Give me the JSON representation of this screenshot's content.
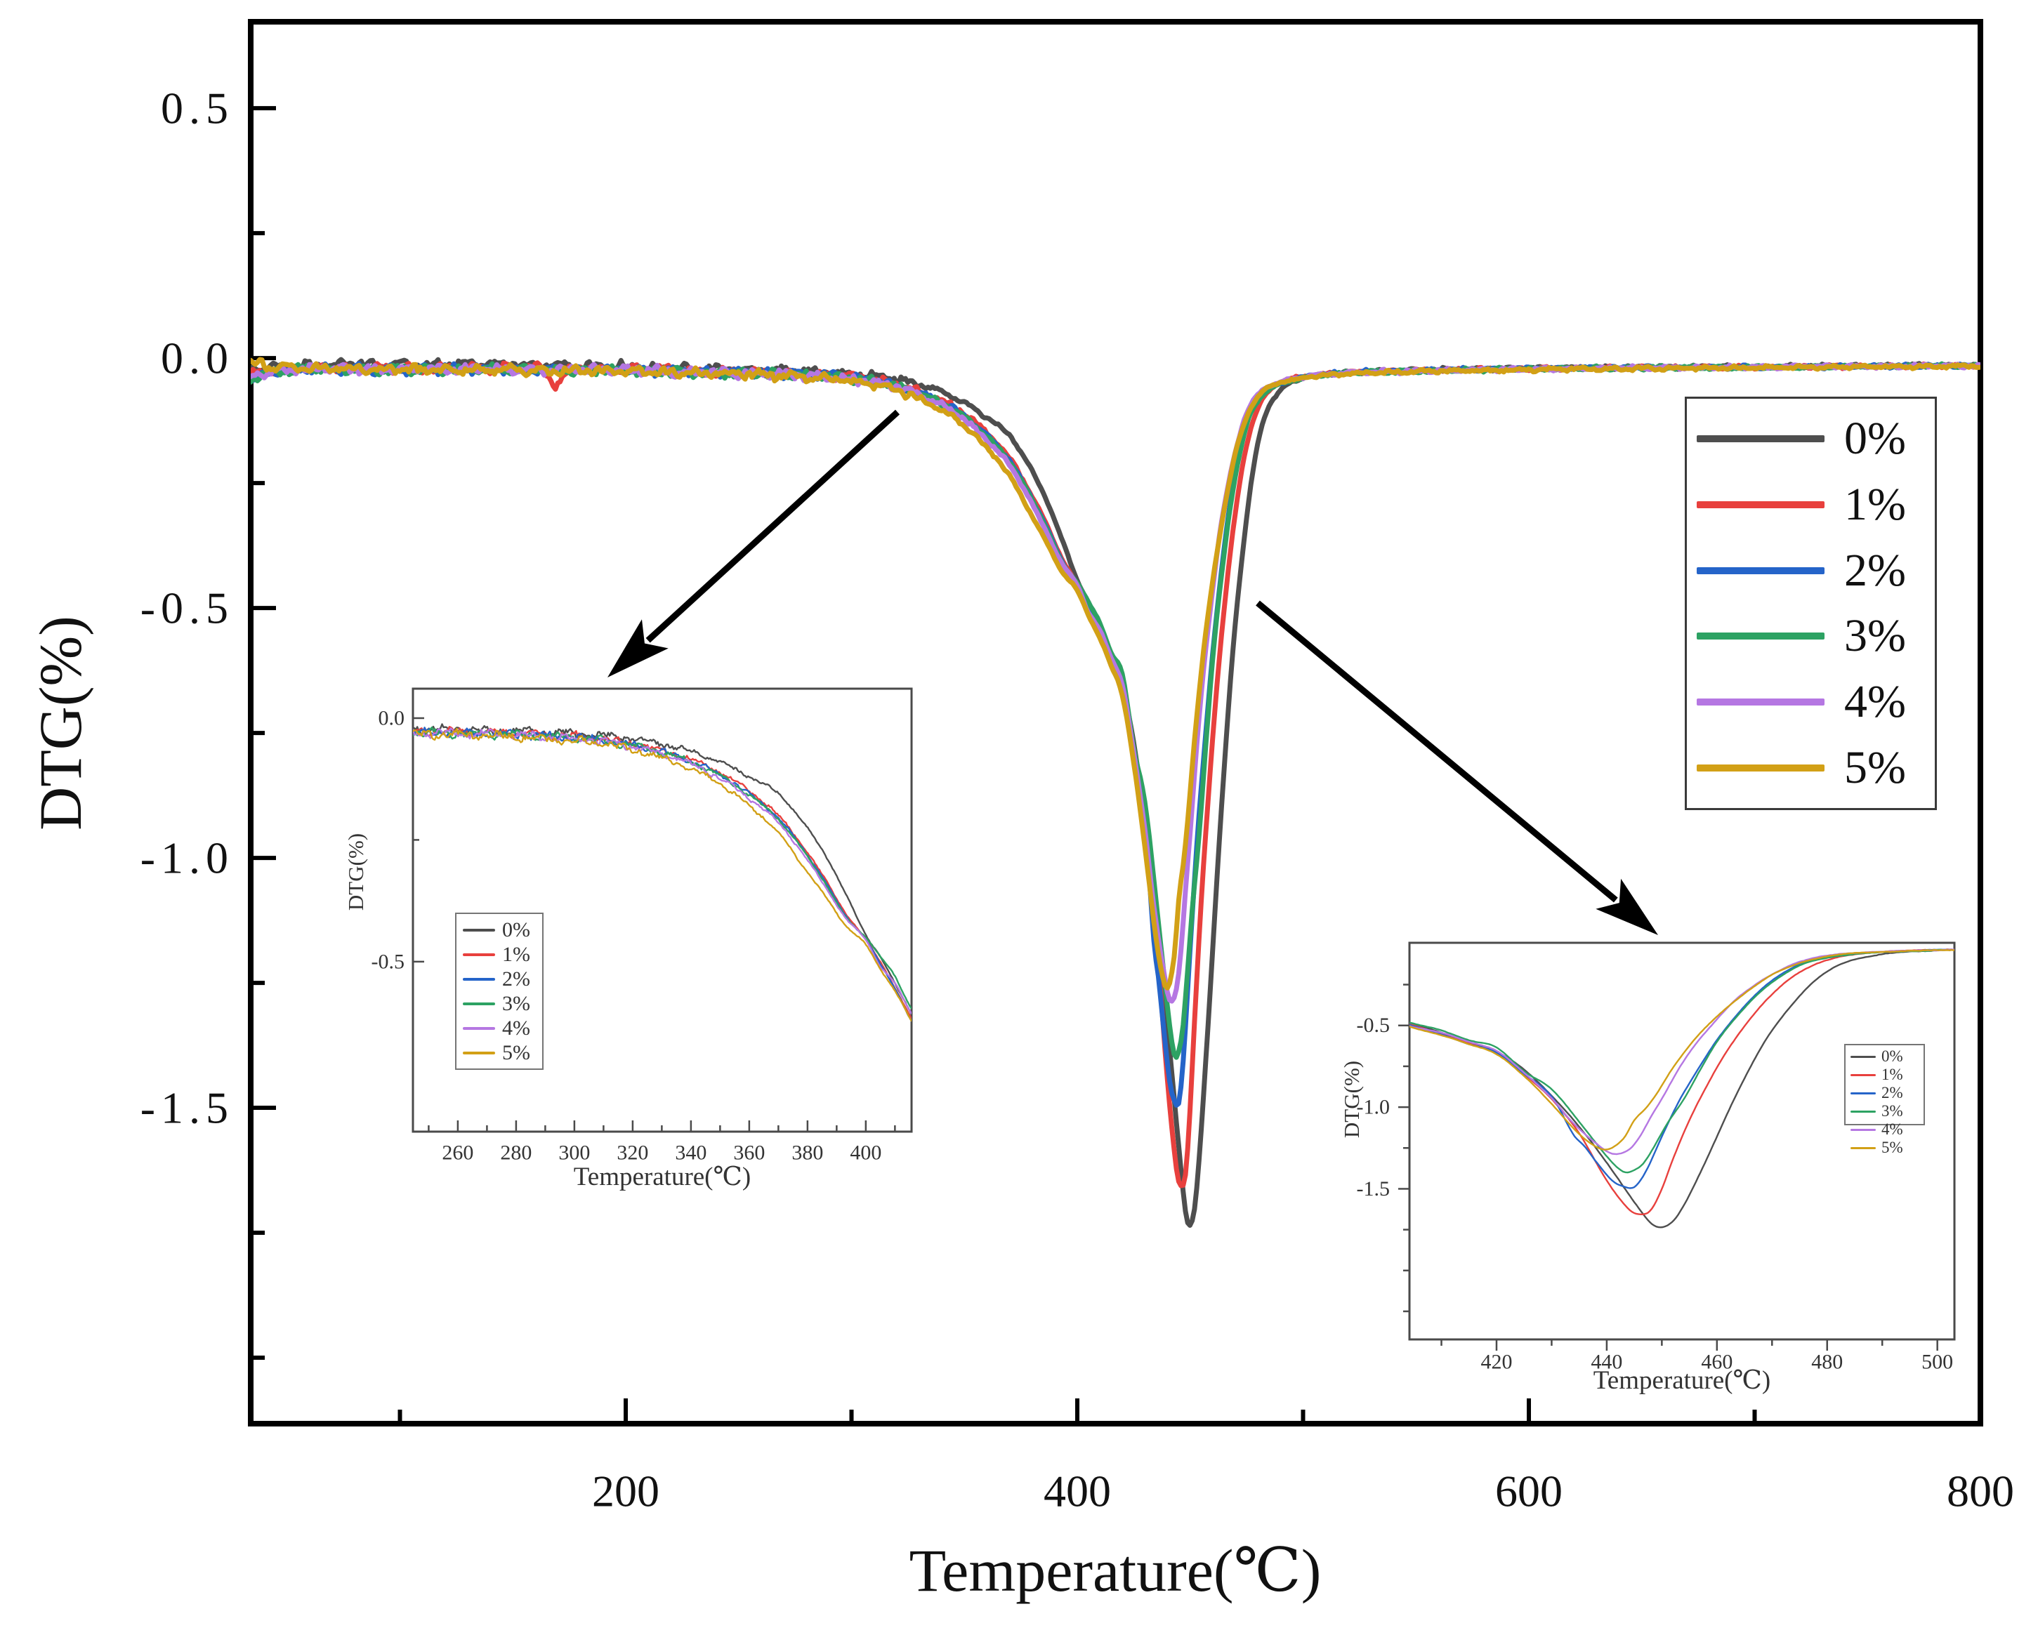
{
  "series": [
    {
      "label": "0%",
      "color": "#4e4e4e",
      "points": [
        [
          34,
          -0.022
        ],
        [
          45,
          -0.018
        ],
        [
          60,
          -0.014
        ],
        [
          80,
          -0.012
        ],
        [
          110,
          -0.013
        ],
        [
          140,
          -0.011
        ],
        [
          170,
          -0.014
        ],
        [
          200,
          -0.016
        ],
        [
          230,
          -0.02
        ],
        [
          260,
          -0.024
        ],
        [
          285,
          -0.028
        ],
        [
          305,
          -0.034
        ],
        [
          320,
          -0.042
        ],
        [
          335,
          -0.06
        ],
        [
          348,
          -0.085
        ],
        [
          360,
          -0.12
        ],
        [
          370,
          -0.155
        ],
        [
          378,
          -0.21
        ],
        [
          386,
          -0.28
        ],
        [
          393,
          -0.36
        ],
        [
          400,
          -0.445
        ],
        [
          405,
          -0.49
        ],
        [
          410,
          -0.545
        ],
        [
          415,
          -0.6
        ],
        [
          420,
          -0.66
        ],
        [
          425,
          -0.77
        ],
        [
          430,
          -0.93
        ],
        [
          435,
          -1.12
        ],
        [
          440,
          -1.34
        ],
        [
          445,
          -1.58
        ],
        [
          448,
          -1.71
        ],
        [
          450,
          -1.735
        ],
        [
          452,
          -1.7
        ],
        [
          454,
          -1.6
        ],
        [
          457,
          -1.4
        ],
        [
          460,
          -1.18
        ],
        [
          463,
          -0.96
        ],
        [
          466,
          -0.76
        ],
        [
          469,
          -0.58
        ],
        [
          472,
          -0.44
        ],
        [
          475,
          -0.32
        ],
        [
          478,
          -0.22
        ],
        [
          481,
          -0.15
        ],
        [
          484,
          -0.105
        ],
        [
          488,
          -0.075
        ],
        [
          494,
          -0.05
        ],
        [
          505,
          -0.035
        ],
        [
          530,
          -0.028
        ],
        [
          570,
          -0.022
        ],
        [
          620,
          -0.02
        ],
        [
          700,
          -0.017
        ],
        [
          800,
          -0.014
        ]
      ]
    },
    {
      "label": "1%",
      "color": "#e8403d",
      "points": [
        [
          34,
          -0.03
        ],
        [
          45,
          -0.024
        ],
        [
          60,
          -0.02
        ],
        [
          80,
          -0.02
        ],
        [
          110,
          -0.022
        ],
        [
          140,
          -0.02
        ],
        [
          163,
          -0.022
        ],
        [
          169,
          -0.052
        ],
        [
          175,
          -0.024
        ],
        [
          200,
          -0.022
        ],
        [
          230,
          -0.026
        ],
        [
          260,
          -0.028
        ],
        [
          285,
          -0.032
        ],
        [
          305,
          -0.04
        ],
        [
          320,
          -0.052
        ],
        [
          335,
          -0.075
        ],
        [
          348,
          -0.105
        ],
        [
          360,
          -0.15
        ],
        [
          370,
          -0.2
        ],
        [
          378,
          -0.26
        ],
        [
          386,
          -0.33
        ],
        [
          393,
          -0.4
        ],
        [
          400,
          -0.455
        ],
        [
          405,
          -0.5
        ],
        [
          410,
          -0.555
        ],
        [
          415,
          -0.61
        ],
        [
          420,
          -0.67
        ],
        [
          425,
          -0.8
        ],
        [
          430,
          -0.95
        ],
        [
          435,
          -1.16
        ],
        [
          440,
          -1.45
        ],
        [
          444,
          -1.625
        ],
        [
          446,
          -1.655
        ],
        [
          448,
          -1.63
        ],
        [
          450,
          -1.5
        ],
        [
          452,
          -1.32
        ],
        [
          455,
          -1.08
        ],
        [
          458,
          -0.88
        ],
        [
          461,
          -0.7
        ],
        [
          464,
          -0.55
        ],
        [
          467,
          -0.42
        ],
        [
          470,
          -0.31
        ],
        [
          473,
          -0.22
        ],
        [
          476,
          -0.155
        ],
        [
          480,
          -0.1
        ],
        [
          485,
          -0.065
        ],
        [
          492,
          -0.045
        ],
        [
          510,
          -0.032
        ],
        [
          550,
          -0.025
        ],
        [
          620,
          -0.02
        ],
        [
          700,
          -0.018
        ],
        [
          800,
          -0.015
        ]
      ]
    },
    {
      "label": "2%",
      "color": "#2564c9",
      "points": [
        [
          34,
          -0.045
        ],
        [
          45,
          -0.028
        ],
        [
          60,
          -0.022
        ],
        [
          90,
          -0.022
        ],
        [
          130,
          -0.022
        ],
        [
          170,
          -0.024
        ],
        [
          200,
          -0.024
        ],
        [
          230,
          -0.027
        ],
        [
          260,
          -0.03
        ],
        [
          285,
          -0.034
        ],
        [
          305,
          -0.042
        ],
        [
          320,
          -0.055
        ],
        [
          335,
          -0.078
        ],
        [
          348,
          -0.11
        ],
        [
          360,
          -0.155
        ],
        [
          370,
          -0.205
        ],
        [
          378,
          -0.265
        ],
        [
          386,
          -0.335
        ],
        [
          393,
          -0.405
        ],
        [
          400,
          -0.455
        ],
        [
          405,
          -0.505
        ],
        [
          410,
          -0.555
        ],
        [
          415,
          -0.615
        ],
        [
          420,
          -0.665
        ],
        [
          425,
          -0.795
        ],
        [
          430,
          -0.935
        ],
        [
          434,
          -1.17
        ],
        [
          436,
          -1.24
        ],
        [
          438,
          -1.33
        ],
        [
          441,
          -1.45
        ],
        [
          443,
          -1.485
        ],
        [
          445,
          -1.49
        ],
        [
          447,
          -1.4
        ],
        [
          450,
          -1.18
        ],
        [
          453,
          -0.97
        ],
        [
          456,
          -0.8
        ],
        [
          460,
          -0.59
        ],
        [
          464,
          -0.42
        ],
        [
          468,
          -0.28
        ],
        [
          472,
          -0.18
        ],
        [
          476,
          -0.115
        ],
        [
          482,
          -0.072
        ],
        [
          490,
          -0.05
        ],
        [
          510,
          -0.032
        ],
        [
          550,
          -0.025
        ],
        [
          620,
          -0.02
        ],
        [
          700,
          -0.018
        ],
        [
          800,
          -0.015
        ]
      ]
    },
    {
      "label": "3%",
      "color": "#2da263",
      "points": [
        [
          34,
          -0.04
        ],
        [
          45,
          -0.027
        ],
        [
          60,
          -0.022
        ],
        [
          90,
          -0.023
        ],
        [
          130,
          -0.022
        ],
        [
          170,
          -0.024
        ],
        [
          200,
          -0.025
        ],
        [
          230,
          -0.028
        ],
        [
          260,
          -0.031
        ],
        [
          285,
          -0.035
        ],
        [
          305,
          -0.043
        ],
        [
          320,
          -0.056
        ],
        [
          335,
          -0.08
        ],
        [
          348,
          -0.112
        ],
        [
          360,
          -0.158
        ],
        [
          370,
          -0.208
        ],
        [
          378,
          -0.268
        ],
        [
          386,
          -0.338
        ],
        [
          393,
          -0.408
        ],
        [
          400,
          -0.45
        ],
        [
          405,
          -0.49
        ],
        [
          410,
          -0.53
        ],
        [
          415,
          -0.59
        ],
        [
          420,
          -0.635
        ],
        [
          425,
          -0.78
        ],
        [
          430,
          -0.89
        ],
        [
          435,
          -1.09
        ],
        [
          440,
          -1.3
        ],
        [
          443,
          -1.395
        ],
        [
          445,
          -1.385
        ],
        [
          447,
          -1.33
        ],
        [
          451,
          -1.1
        ],
        [
          454,
          -0.95
        ],
        [
          457,
          -0.77
        ],
        [
          460,
          -0.6
        ],
        [
          464,
          -0.43
        ],
        [
          468,
          -0.29
        ],
        [
          472,
          -0.19
        ],
        [
          476,
          -0.12
        ],
        [
          482,
          -0.075
        ],
        [
          490,
          -0.052
        ],
        [
          510,
          -0.033
        ],
        [
          550,
          -0.026
        ],
        [
          620,
          -0.021
        ],
        [
          700,
          -0.018
        ],
        [
          800,
          -0.015
        ]
      ]
    },
    {
      "label": "4%",
      "color": "#b577e2",
      "points": [
        [
          34,
          -0.038
        ],
        [
          45,
          -0.026
        ],
        [
          60,
          -0.021
        ],
        [
          90,
          -0.022
        ],
        [
          130,
          -0.022
        ],
        [
          170,
          -0.023
        ],
        [
          200,
          -0.024
        ],
        [
          230,
          -0.028
        ],
        [
          260,
          -0.031
        ],
        [
          285,
          -0.036
        ],
        [
          305,
          -0.045
        ],
        [
          320,
          -0.058
        ],
        [
          335,
          -0.083
        ],
        [
          348,
          -0.117
        ],
        [
          360,
          -0.165
        ],
        [
          370,
          -0.215
        ],
        [
          378,
          -0.275
        ],
        [
          386,
          -0.345
        ],
        [
          393,
          -0.41
        ],
        [
          400,
          -0.455
        ],
        [
          405,
          -0.51
        ],
        [
          410,
          -0.545
        ],
        [
          415,
          -0.6
        ],
        [
          420,
          -0.655
        ],
        [
          425,
          -0.79
        ],
        [
          430,
          -0.945
        ],
        [
          434,
          -1.1
        ],
        [
          438,
          -1.22
        ],
        [
          441,
          -1.285
        ],
        [
          444,
          -1.26
        ],
        [
          446,
          -1.18
        ],
        [
          448,
          -1.06
        ],
        [
          450,
          -0.95
        ],
        [
          453,
          -0.77
        ],
        [
          456,
          -0.62
        ],
        [
          459,
          -0.5
        ],
        [
          463,
          -0.355
        ],
        [
          467,
          -0.25
        ],
        [
          471,
          -0.17
        ],
        [
          475,
          -0.11
        ],
        [
          481,
          -0.068
        ],
        [
          490,
          -0.048
        ],
        [
          510,
          -0.032
        ],
        [
          550,
          -0.026
        ],
        [
          620,
          -0.021
        ],
        [
          700,
          -0.018
        ],
        [
          800,
          -0.015
        ]
      ]
    },
    {
      "label": "5%",
      "color": "#d2a016",
      "points": [
        [
          34,
          -0.008
        ],
        [
          45,
          -0.018
        ],
        [
          60,
          -0.02
        ],
        [
          90,
          -0.022
        ],
        [
          130,
          -0.023
        ],
        [
          170,
          -0.025
        ],
        [
          200,
          -0.027
        ],
        [
          230,
          -0.03
        ],
        [
          260,
          -0.034
        ],
        [
          285,
          -0.04
        ],
        [
          305,
          -0.05
        ],
        [
          320,
          -0.065
        ],
        [
          335,
          -0.092
        ],
        [
          348,
          -0.128
        ],
        [
          360,
          -0.18
        ],
        [
          370,
          -0.235
        ],
        [
          378,
          -0.3
        ],
        [
          386,
          -0.365
        ],
        [
          393,
          -0.425
        ],
        [
          400,
          -0.465
        ],
        [
          405,
          -0.515
        ],
        [
          410,
          -0.56
        ],
        [
          415,
          -0.615
        ],
        [
          420,
          -0.675
        ],
        [
          425,
          -0.81
        ],
        [
          430,
          -0.98
        ],
        [
          434,
          -1.13
        ],
        [
          437,
          -1.22
        ],
        [
          440,
          -1.26
        ],
        [
          443,
          -1.195
        ],
        [
          445,
          -1.08
        ],
        [
          447,
          -1.01
        ],
        [
          449,
          -0.92
        ],
        [
          452,
          -0.76
        ],
        [
          455,
          -0.625
        ],
        [
          458,
          -0.51
        ],
        [
          462,
          -0.385
        ],
        [
          466,
          -0.28
        ],
        [
          470,
          -0.19
        ],
        [
          474,
          -0.13
        ],
        [
          478,
          -0.09
        ],
        [
          484,
          -0.06
        ],
        [
          494,
          -0.045
        ],
        [
          510,
          -0.034
        ],
        [
          550,
          -0.027
        ],
        [
          620,
          -0.022
        ],
        [
          700,
          -0.019
        ],
        [
          800,
          -0.016
        ]
      ]
    }
  ],
  "chart_data": [
    {
      "id": "main",
      "type": "line",
      "xlabel": "Temperature(℃)",
      "ylabel": "DTG(%)",
      "xlim": [
        33.9,
        800
      ],
      "ylim": [
        -2.132,
        0.673
      ],
      "x_ticks": {
        "major": [
          200,
          400,
          600,
          800
        ],
        "labels": [
          "200",
          "400",
          "600",
          "800"
        ],
        "minor": [
          100,
          300,
          500,
          700
        ]
      },
      "y_ticks": {
        "major": [
          0.5,
          0,
          -0.5,
          -1,
          -1.5
        ],
        "labels": [
          "0.5",
          "0.0",
          "-0.5",
          "-1.0",
          "-1.5"
        ],
        "minor": [
          0.25,
          -0.25,
          -0.75,
          -1.25,
          -1.75,
          -2
        ]
      },
      "legend_entries": [
        "0%",
        "1%",
        "2%",
        "3%",
        "4%",
        "5%"
      ],
      "legend_position": "upper-right",
      "grid": false,
      "tick_direction": "in"
    },
    {
      "id": "inset_left",
      "type": "line",
      "xlabel": "Temperature(℃)",
      "ylabel": "DTG(%)",
      "xlim": [
        244.6,
        415.7
      ],
      "ylim": [
        -0.849,
        0.0605
      ],
      "x_ticks": {
        "major": [
          260,
          280,
          300,
          320,
          340,
          360,
          380,
          400
        ],
        "labels": [
          "260",
          "280",
          "300",
          "320",
          "340",
          "360",
          "380",
          "400"
        ],
        "minor": [
          250,
          270,
          290,
          310,
          330,
          350,
          370,
          390,
          410
        ]
      },
      "y_ticks": {
        "major": [
          0,
          -0.5
        ],
        "labels": [
          "0.0",
          "-0.5"
        ],
        "minor": [
          -0.25
        ]
      },
      "legend_entries": [
        "0%",
        "1%",
        "2%",
        "3%",
        "4%",
        "5%"
      ],
      "legend_position": "center-left",
      "grid": false,
      "tick_direction": "in"
    },
    {
      "id": "inset_right",
      "type": "line",
      "xlabel": "Temperature(℃)",
      "ylabel": "DTG(%)",
      "xlim": [
        404.2,
        503.1
      ],
      "ylim": [
        -2.422,
        0.006
      ],
      "x_ticks": {
        "major": [
          420,
          440,
          460,
          480,
          500
        ],
        "labels": [
          "420",
          "440",
          "460",
          "480",
          "500"
        ],
        "minor": [
          410,
          430,
          450,
          470,
          490
        ]
      },
      "y_ticks": {
        "major": [
          -0.5,
          -1,
          -1.5
        ],
        "labels": [
          "-0.5",
          "-1.0",
          "-1.5"
        ],
        "minor": [
          -0.25,
          -0.75,
          -1.25,
          -1.75,
          -2,
          -2.25
        ]
      },
      "legend_entries": [
        "0%",
        "1%",
        "2%",
        "3%",
        "4%",
        "5%"
      ],
      "legend_position": "center-right",
      "grid": false,
      "tick_direction": "out"
    }
  ],
  "annotations": {
    "arrows": [
      {
        "name": "zoom-arrow-left",
        "from": [
          1278,
          587
        ],
        "to": [
          865,
          965
        ]
      },
      {
        "name": "zoom-arrow-right",
        "from": [
          1791,
          859
        ],
        "to": [
          2361,
          1332
        ]
      }
    ]
  }
}
